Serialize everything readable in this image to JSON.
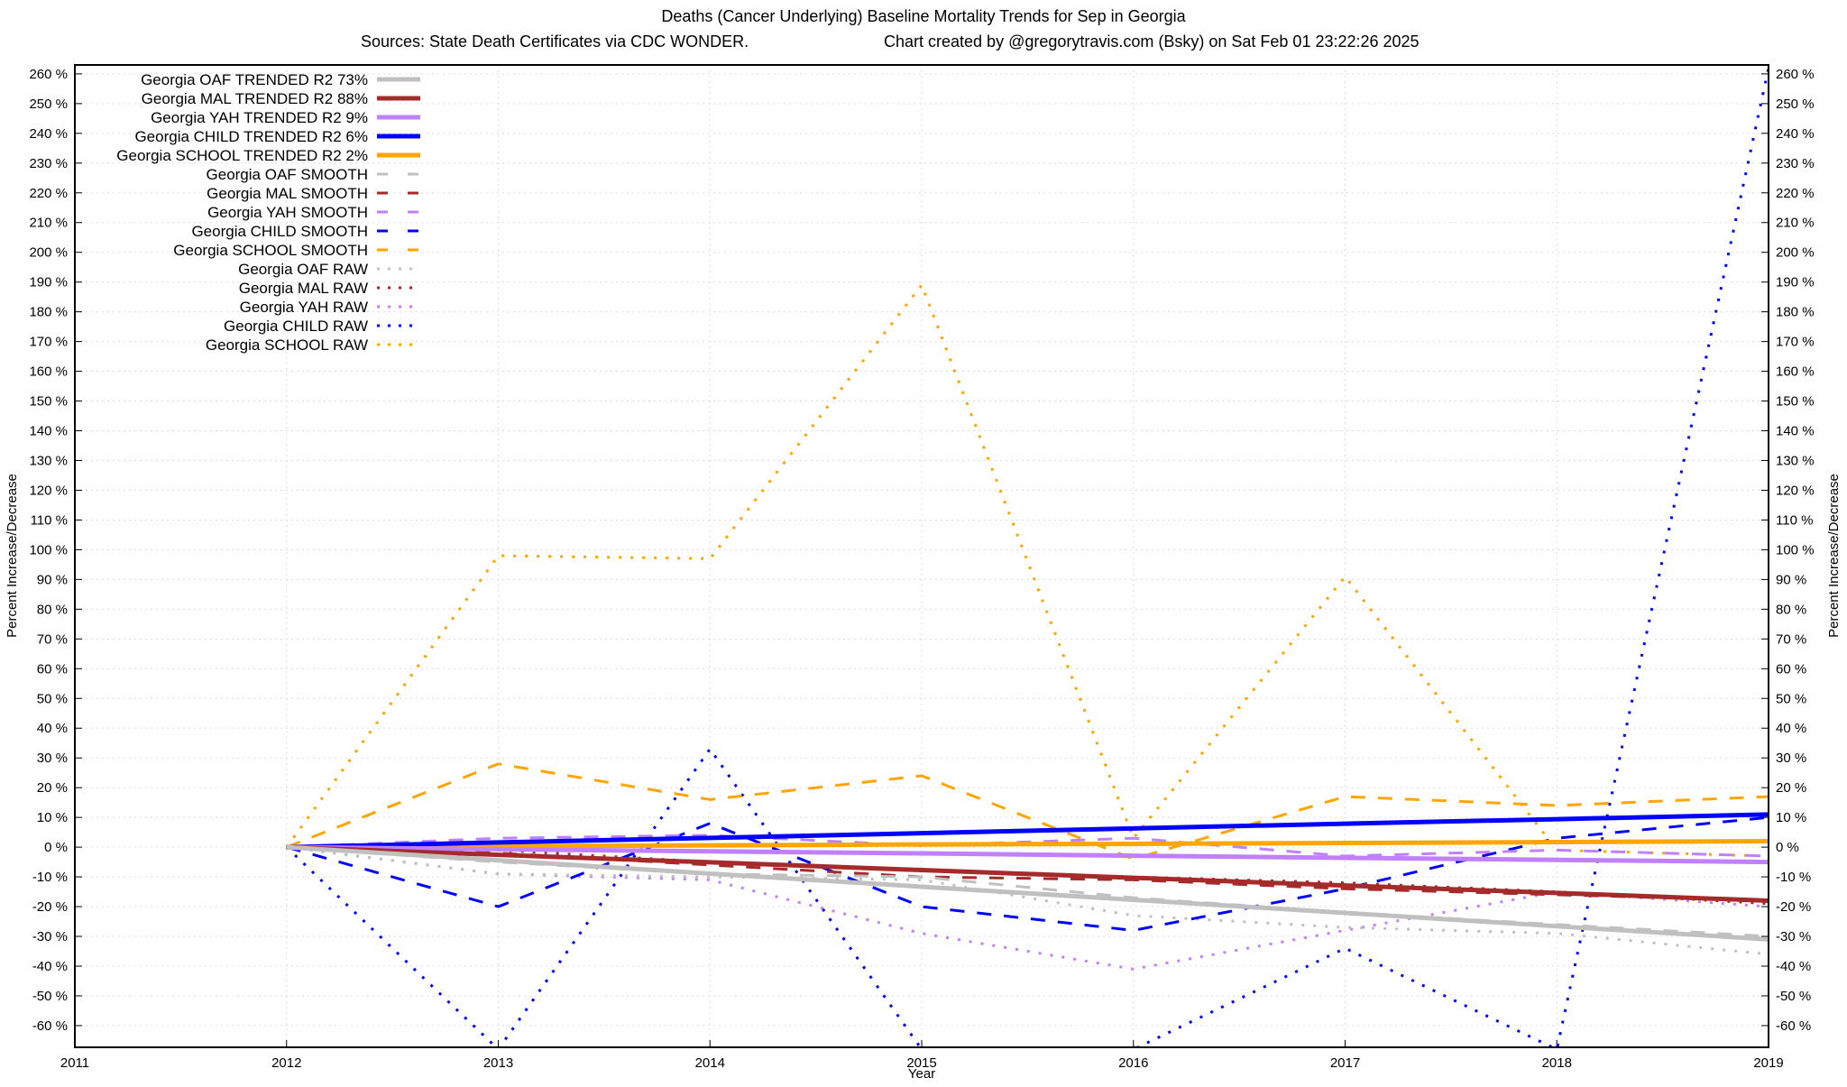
{
  "chart_data": {
    "type": "line",
    "title": "Deaths (Cancer Underlying)  Baseline Mortality Trends for Sep in Georgia",
    "subtitle_left": "Sources: State Death Certificates via CDC WONDER.",
    "subtitle_right": "Chart created by @gregorytravis.com (Bsky) on Sat Feb 01 23:22:26 2025",
    "xlabel": "Year",
    "ylabel": "Percent Increase/Decrease",
    "ylabel_right": "Percent Increase/Decrease",
    "xlim": [
      2011,
      2019
    ],
    "ylim": [
      -67.3,
      263
    ],
    "x_ticks": [
      2011,
      2012,
      2013,
      2014,
      2015,
      2016,
      2017,
      2018,
      2019
    ],
    "y_ticks": [
      -60,
      -50,
      -40,
      -30,
      -20,
      -10,
      0,
      10,
      20,
      30,
      40,
      50,
      60,
      70,
      80,
      90,
      100,
      110,
      120,
      130,
      140,
      150,
      160,
      170,
      180,
      190,
      200,
      210,
      220,
      230,
      240,
      250,
      260
    ],
    "y_tick_suffix": " %",
    "grid": true,
    "legend_placement": "top-left",
    "x": [
      2012,
      2013,
      2014,
      2015,
      2016,
      2017,
      2018,
      2019
    ],
    "series": [
      {
        "name": "Georgia OAF TRENDED R2  73%",
        "color": "#c0c0c0",
        "style": "solid",
        "values": [
          0,
          -4.4,
          -8.9,
          -13.3,
          -17.7,
          -22.1,
          -26.6,
          -31
        ]
      },
      {
        "name": "Georgia MAL TRENDED R2  88%",
        "color": "#a52a2a",
        "style": "solid",
        "values": [
          0,
          -2.6,
          -5.1,
          -7.7,
          -10.3,
          -12.9,
          -15.4,
          -18
        ]
      },
      {
        "name": "Georgia YAH TRENDED R2  9%",
        "color": "#c080ff",
        "style": "solid",
        "values": [
          0,
          -0.7,
          -1.4,
          -2.1,
          -2.9,
          -3.6,
          -4.3,
          -5
        ]
      },
      {
        "name": "Georgia CHILD TRENDED R2  6%",
        "color": "#0000ff",
        "style": "solid",
        "values": [
          0,
          1.6,
          3.1,
          4.7,
          6.3,
          7.9,
          9.4,
          11
        ]
      },
      {
        "name": "Georgia SCHOOL TRENDED R2  2%",
        "color": "#ffa500",
        "style": "solid",
        "values": [
          0,
          0.3,
          0.6,
          0.9,
          1.1,
          1.4,
          1.7,
          2
        ]
      },
      {
        "name": "Georgia OAF SMOOTH",
        "color": "#c0c0c0",
        "style": "dashed",
        "values": [
          0,
          -5,
          -9,
          -10,
          -17,
          -22,
          -26,
          -30
        ]
      },
      {
        "name": "Georgia MAL SMOOTH",
        "color": "#a52a2a",
        "style": "dashed",
        "values": [
          0,
          -2,
          -6,
          -10,
          -11,
          -14,
          -16,
          -18
        ]
      },
      {
        "name": "Georgia YAH SMOOTH",
        "color": "#c080ff",
        "style": "dashed",
        "values": [
          0,
          3,
          4,
          0.5,
          3,
          -3,
          -1,
          -3
        ]
      },
      {
        "name": "Georgia CHILD SMOOTH",
        "color": "#0000ff",
        "style": "dashed",
        "values": [
          0,
          -20,
          8,
          -20,
          -28,
          -14,
          3,
          10
        ]
      },
      {
        "name": "Georgia SCHOOL SMOOTH",
        "color": "#ffa500",
        "style": "dashed",
        "values": [
          0,
          28,
          16,
          24,
          -4,
          17,
          14,
          17
        ]
      },
      {
        "name": "Georgia OAF RAW",
        "color": "#c0c0c0",
        "style": "dotted",
        "values": [
          0,
          -9,
          -10,
          -11,
          -23,
          -27,
          -29,
          -36
        ]
      },
      {
        "name": "Georgia MAL RAW",
        "color": "#a52a2a",
        "style": "dotted",
        "values": [
          0,
          -1,
          -5,
          -8,
          -10,
          -12,
          -15,
          -19
        ]
      },
      {
        "name": "Georgia YAH RAW",
        "color": "#c080ff",
        "style": "dotted",
        "values": [
          0,
          -9,
          -11,
          -29,
          -41,
          -28,
          -15,
          -20
        ]
      },
      {
        "name": "Georgia CHILD RAW",
        "color": "#0000ff",
        "style": "dotted",
        "values": [
          0,
          -68,
          33,
          -68,
          -68,
          -34,
          -68,
          262
        ]
      },
      {
        "name": "Georgia SCHOOL RAW",
        "color": "#ffa500",
        "style": "dotted",
        "values": [
          0,
          98,
          97,
          189,
          3,
          91,
          -1,
          -3
        ]
      }
    ]
  }
}
